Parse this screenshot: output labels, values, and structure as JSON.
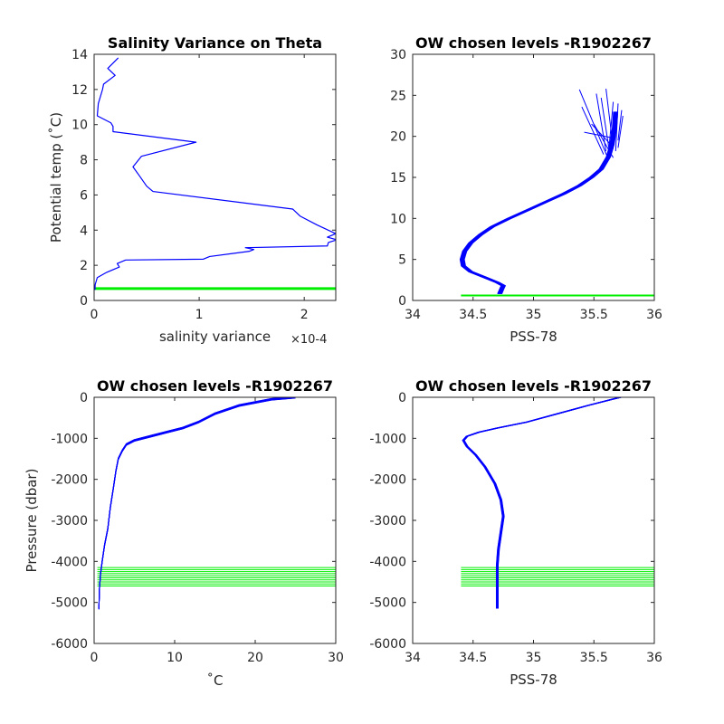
{
  "chart_data": [
    {
      "type": "line",
      "title": "Salinity Variance on Theta",
      "xlabel": "salinity variance",
      "ylabel": "Potential temp (˚C)",
      "xlim": [
        0,
        0.00023
      ],
      "ylim": [
        0,
        14
      ],
      "x_ticks": [
        "0",
        "1",
        "2"
      ],
      "x_tick_values": [
        0,
        0.0001,
        0.0002
      ],
      "x_exponent_label": "×10-4",
      "y_ticks": [
        "0",
        "2",
        "4",
        "6",
        "8",
        "10",
        "12",
        "14"
      ],
      "y_tick_values": [
        0,
        2,
        4,
        6,
        8,
        10,
        12,
        14
      ],
      "series": [
        {
          "color": "#0000ff",
          "points": [
            [
              8e-07,
              0.6
            ],
            [
              1e-06,
              0.9
            ],
            [
              3e-06,
              1.3
            ],
            [
              1.2e-05,
              1.6
            ],
            [
              2.4e-05,
              1.9
            ],
            [
              2.2e-05,
              2.1
            ],
            [
              3e-05,
              2.3
            ],
            [
              0.000104,
              2.35
            ],
            [
              0.00011,
              2.5
            ],
            [
              0.000148,
              2.8
            ],
            [
              0.000152,
              2.9
            ],
            [
              0.000144,
              3.0
            ],
            [
              0.000222,
              3.1
            ],
            [
              0.000223,
              3.3
            ],
            [
              0.000231,
              3.45
            ],
            [
              0.000222,
              3.6
            ],
            [
              0.00023,
              3.8
            ],
            [
              0.000212,
              4.3
            ],
            [
              0.000196,
              4.8
            ],
            [
              0.000189,
              5.2
            ],
            [
              5.6e-05,
              6.2
            ],
            [
              5e-05,
              6.5
            ],
            [
              4.3e-05,
              7.1
            ],
            [
              3.7e-05,
              7.6
            ],
            [
              4.5e-05,
              8.2
            ],
            [
              9.7e-05,
              9.0
            ],
            [
              1.8e-05,
              9.6
            ],
            [
              1.8e-05,
              9.9
            ],
            [
              1.6e-05,
              10.1
            ],
            [
              3e-06,
              10.5
            ],
            [
              4e-06,
              11.2
            ],
            [
              8e-06,
              12.0
            ],
            [
              9e-06,
              12.3
            ],
            [
              2e-05,
              12.8
            ],
            [
              1.3e-05,
              13.2
            ],
            [
              2.3e-05,
              13.8
            ]
          ]
        }
      ],
      "reference_lines": [
        {
          "color": "#00ee00",
          "values": [
            0.65,
            0.7
          ]
        }
      ]
    },
    {
      "type": "line",
      "title": "OW chosen levels -R1902267",
      "xlabel": "PSS-78",
      "ylabel": "",
      "xlim": [
        34,
        36
      ],
      "ylim": [
        0,
        30
      ],
      "x_ticks": [
        "34",
        "34.5",
        "35",
        "35.5",
        "36"
      ],
      "x_tick_values": [
        34,
        34.5,
        35,
        35.5,
        36
      ],
      "y_ticks": [
        "0",
        "5",
        "10",
        "15",
        "20",
        "25",
        "30"
      ],
      "y_tick_values": [
        0,
        5,
        10,
        15,
        20,
        25,
        30
      ],
      "series": [
        {
          "color": "#0000ff",
          "profile_count": 12,
          "profile_spread": 0.035,
          "points": [
            [
              34.72,
              0.8
            ],
            [
              34.74,
              1.5
            ],
            [
              34.75,
              1.8
            ],
            [
              34.7,
              2.2
            ],
            [
              34.6,
              2.8
            ],
            [
              34.48,
              3.5
            ],
            [
              34.42,
              4.2
            ],
            [
              34.41,
              5
            ],
            [
              34.43,
              6
            ],
            [
              34.48,
              7
            ],
            [
              34.56,
              8
            ],
            [
              34.66,
              9
            ],
            [
              34.8,
              10
            ],
            [
              34.95,
              11
            ],
            [
              35.1,
              12
            ],
            [
              35.25,
              13
            ],
            [
              35.38,
              14
            ],
            [
              35.48,
              15
            ],
            [
              35.56,
              16
            ],
            [
              35.62,
              17.5
            ],
            [
              35.65,
              19
            ],
            [
              35.67,
              21
            ],
            [
              35.68,
              23
            ]
          ]
        }
      ],
      "spikes": {
        "color": "#0000ff",
        "segments": [
          [
            35.62,
            17.2,
            35.38,
            25.7
          ],
          [
            35.6,
            18.2,
            35.52,
            25.2
          ],
          [
            35.58,
            17.8,
            35.4,
            23.6
          ],
          [
            35.63,
            18,
            35.56,
            24.7
          ],
          [
            35.66,
            18.5,
            35.6,
            25.8
          ],
          [
            35.64,
            19,
            35.48,
            21.5
          ],
          [
            35.7,
            18.6,
            35.74,
            22.5
          ],
          [
            35.7,
            19.5,
            35.73,
            23.2
          ],
          [
            35.66,
            19.8,
            35.42,
            20.5
          ],
          [
            35.62,
            17.8,
            35.66,
            24.2
          ],
          [
            35.68,
            18.2,
            35.7,
            24
          ],
          [
            35.66,
            17.4,
            35.5,
            21.5
          ]
        ]
      },
      "reference_lines": [
        {
          "color": "#00ee00",
          "value": 0.6,
          "xrange": [
            34.4,
            36
          ]
        }
      ]
    },
    {
      "type": "line",
      "title": "OW chosen levels -R1902267",
      "xlabel": "˚C",
      "ylabel": "Pressure (dbar)",
      "xlim": [
        0,
        30
      ],
      "ylim": [
        -6000,
        0
      ],
      "x_ticks": [
        "0",
        "10",
        "20",
        "30"
      ],
      "x_tick_values": [
        0,
        10,
        20,
        30
      ],
      "y_ticks": [
        "-6000",
        "-5000",
        "-4000",
        "-3000",
        "-2000",
        "-1000",
        "0"
      ],
      "y_tick_values": [
        -6000,
        -5000,
        -4000,
        -3000,
        -2000,
        -1000,
        0
      ],
      "series": [
        {
          "color": "#0000ff",
          "profile_count": 12,
          "profile_spread": 40,
          "points": [
            [
              25,
              0
            ],
            [
              22,
              -50
            ],
            [
              18,
              -200
            ],
            [
              15,
              -400
            ],
            [
              13,
              -600
            ],
            [
              11,
              -750
            ],
            [
              9,
              -850
            ],
            [
              7,
              -950
            ],
            [
              5,
              -1050
            ],
            [
              4,
              -1150
            ],
            [
              3.5,
              -1300
            ],
            [
              3,
              -1500
            ],
            [
              2.7,
              -1800
            ],
            [
              2.4,
              -2200
            ],
            [
              2,
              -2700
            ],
            [
              1.7,
              -3200
            ],
            [
              1.3,
              -3600
            ],
            [
              1,
              -4000
            ],
            [
              0.8,
              -4300
            ],
            [
              0.65,
              -4700
            ],
            [
              0.6,
              -5150
            ]
          ]
        }
      ],
      "reference_lines": [
        {
          "color": "#00ee00",
          "values": [
            -4150,
            -4200,
            -4250,
            -4300,
            -4350,
            -4400,
            -4450,
            -4500,
            -4550,
            -4600
          ],
          "xrange": [
            0.4,
            30
          ]
        }
      ]
    },
    {
      "type": "line",
      "title": "OW chosen levels -R1902267",
      "xlabel": "PSS-78",
      "ylabel": "",
      "xlim": [
        34,
        36
      ],
      "ylim": [
        -6000,
        0
      ],
      "x_ticks": [
        "34",
        "34.5",
        "35",
        "35.5",
        "36"
      ],
      "x_tick_values": [
        34,
        34.5,
        35,
        35.5,
        36
      ],
      "y_ticks": [
        "-6000",
        "-5000",
        "-4000",
        "-3000",
        "-2000",
        "-1000",
        "0"
      ],
      "y_tick_values": [
        -6000,
        -5000,
        -4000,
        -3000,
        -2000,
        -1000,
        0
      ],
      "series": [
        {
          "color": "#0000ff",
          "profile_count": 12,
          "profile_spread": 0.015,
          "points": [
            [
              35.72,
              0
            ],
            [
              35.65,
              -50
            ],
            [
              35.45,
              -200
            ],
            [
              35.2,
              -400
            ],
            [
              34.95,
              -600
            ],
            [
              34.7,
              -750
            ],
            [
              34.55,
              -850
            ],
            [
              34.45,
              -950
            ],
            [
              34.42,
              -1050
            ],
            [
              34.45,
              -1200
            ],
            [
              34.52,
              -1400
            ],
            [
              34.6,
              -1700
            ],
            [
              34.68,
              -2100
            ],
            [
              34.73,
              -2500
            ],
            [
              34.75,
              -2900
            ],
            [
              34.73,
              -3300
            ],
            [
              34.71,
              -3700
            ],
            [
              34.7,
              -4100
            ],
            [
              34.7,
              -4600
            ],
            [
              34.7,
              -5150
            ]
          ]
        }
      ],
      "reference_lines": [
        {
          "color": "#00ee00",
          "values": [
            -4150,
            -4200,
            -4250,
            -4300,
            -4350,
            -4400,
            -4450,
            -4500,
            -4550,
            -4600
          ],
          "xrange": [
            34.4,
            36
          ]
        }
      ]
    }
  ]
}
